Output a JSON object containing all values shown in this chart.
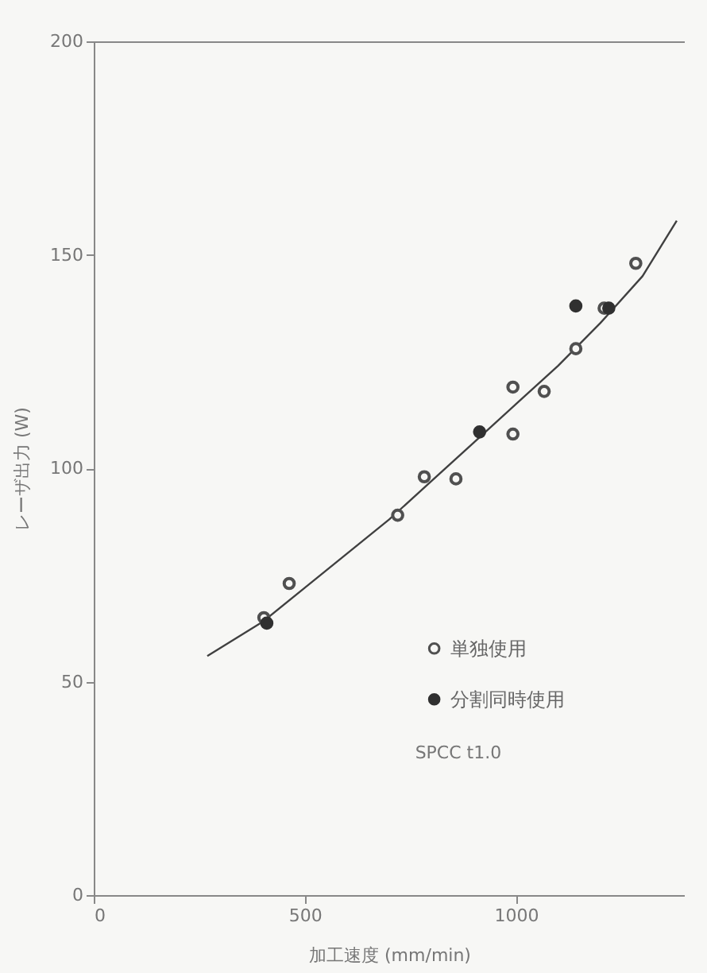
{
  "chart_data": {
    "type": "scatter",
    "xlabel": "加工速度 (mm/min)",
    "ylabel": "レーザ出力 (W)",
    "xlim": [
      0,
      1400
    ],
    "ylim": [
      0,
      200
    ],
    "xticks": [
      0,
      500,
      1000
    ],
    "yticks": [
      0,
      50,
      100,
      150,
      200
    ],
    "legend": "bottom right",
    "annotations": [
      "SPCC t1.0"
    ],
    "series": [
      {
        "name": "単独使用",
        "color": "#505050",
        "marker": "circle",
        "x": [
          403,
          463,
          720,
          783,
          858,
          993,
          993,
          1067,
          1142,
          1209,
          1284
        ],
        "values": [
          65,
          73,
          89,
          98,
          97.5,
          108,
          119,
          118,
          128,
          137.5,
          148
        ]
      },
      {
        "name": "分割同時使用",
        "color": "#303030",
        "marker": "circle",
        "x": [
          410,
          914,
          1142,
          1220
        ],
        "values": [
          63.7,
          108.5,
          138,
          137.5
        ]
      },
      {
        "type": "line",
        "color": "#404040",
        "x": [
          269,
          400,
          500,
          600,
          700,
          800,
          900,
          1000,
          1100,
          1200,
          1300,
          1381
        ],
        "values": [
          56,
          64,
          72,
          80,
          88,
          97,
          106,
          115,
          124,
          134,
          145,
          158
        ]
      }
    ]
  }
}
